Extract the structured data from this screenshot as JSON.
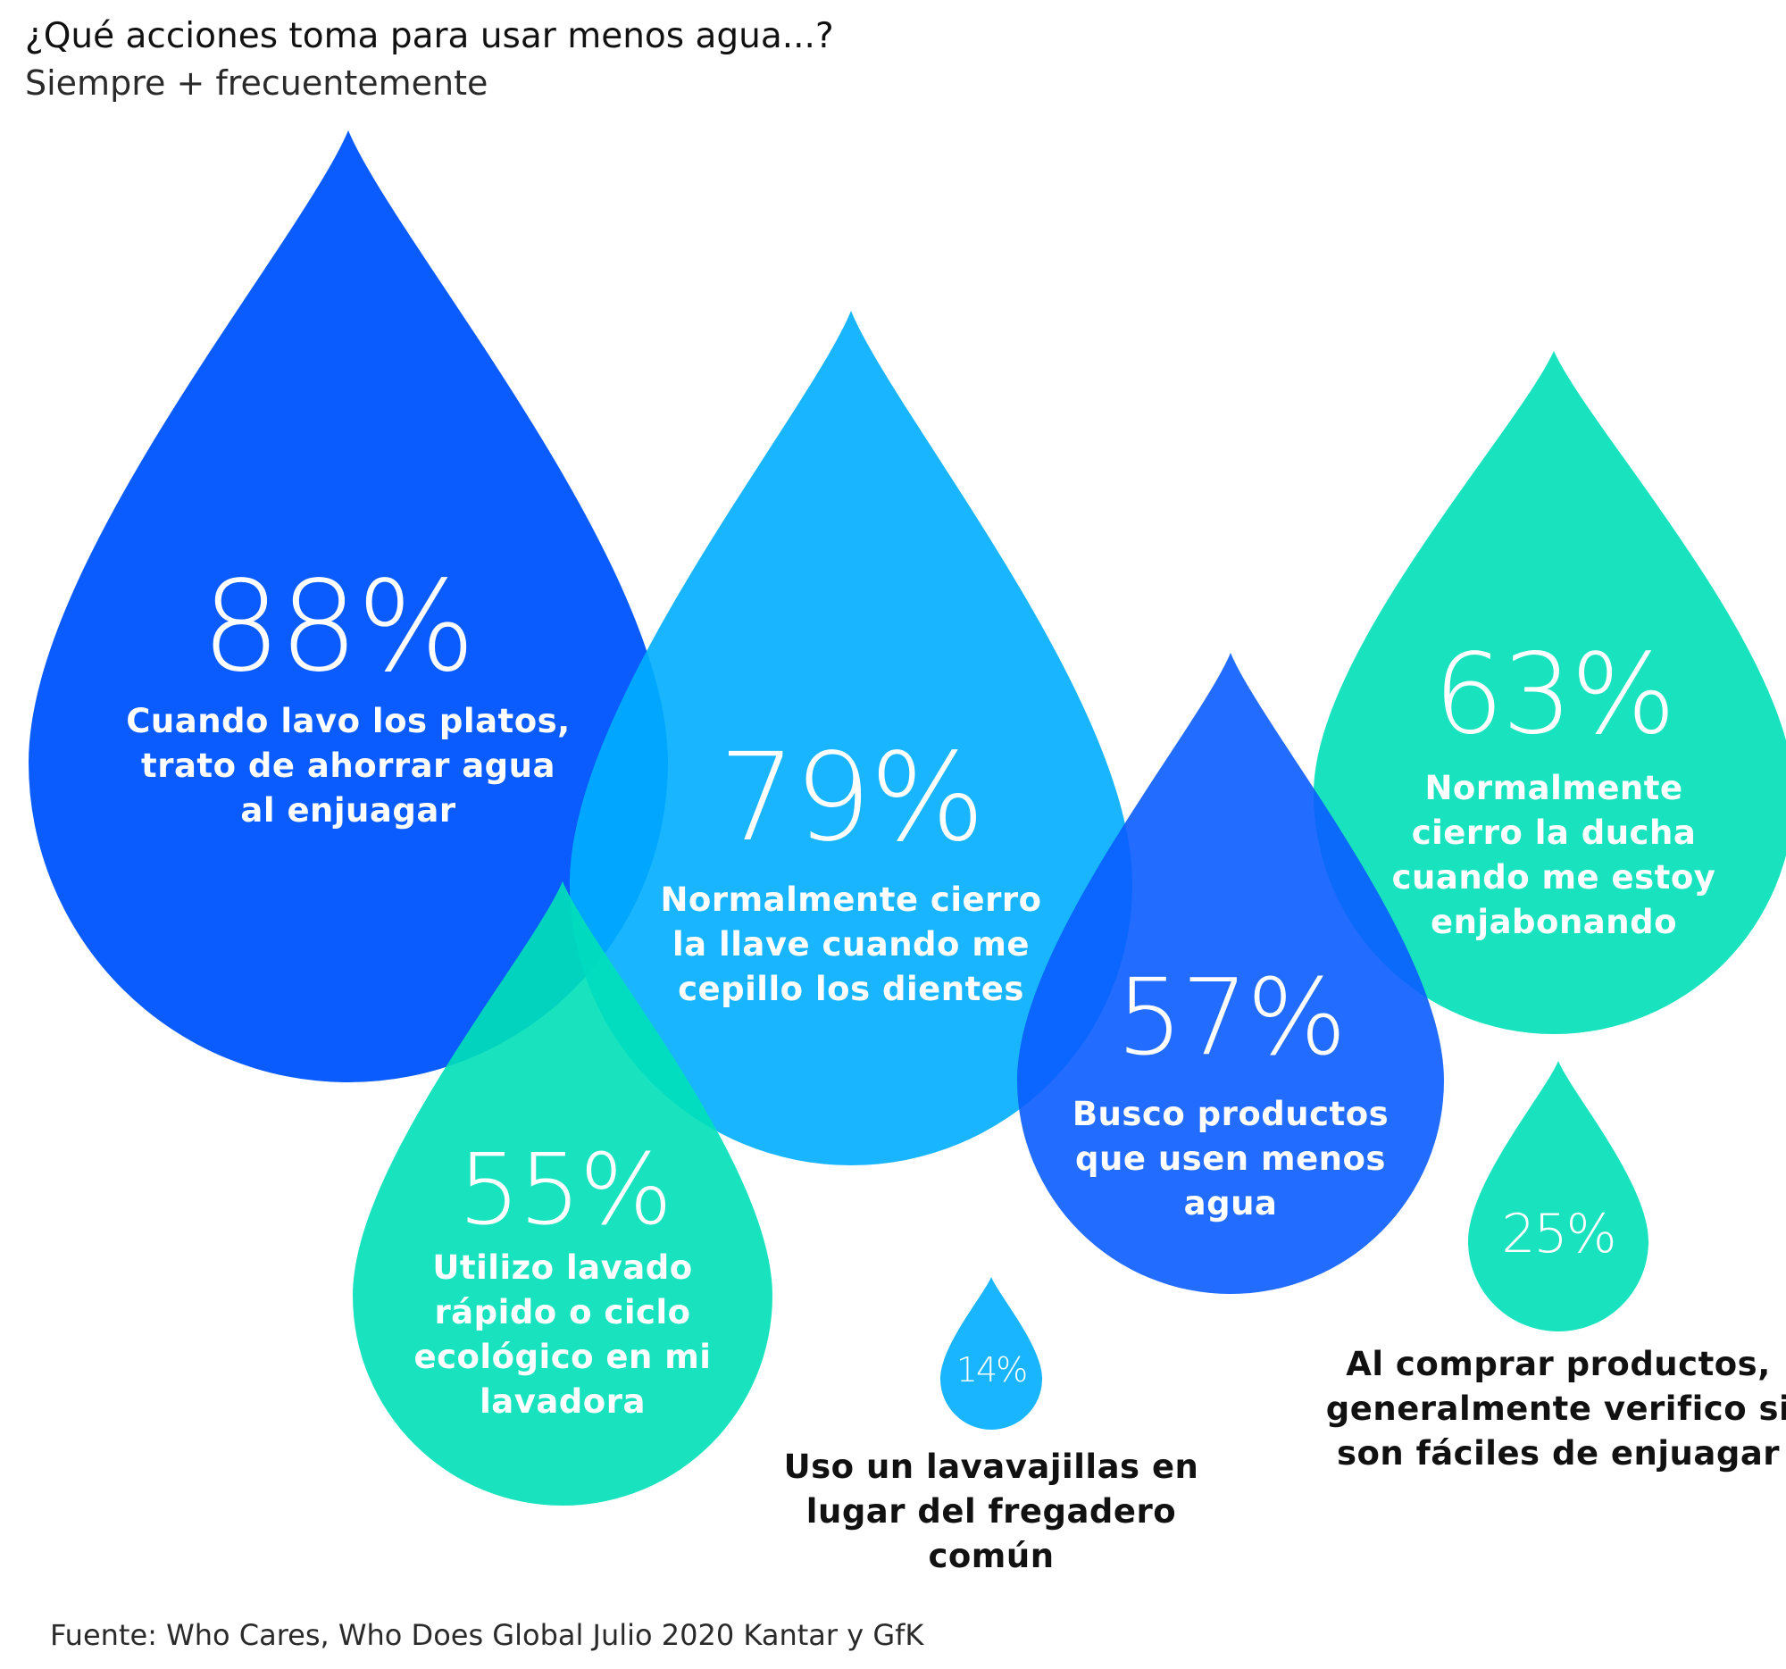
{
  "chart_data": {
    "type": "bar",
    "title": "¿Qué acciones toma para usar menos agua...?",
    "subtitle": "Siempre + frecuentemente",
    "source": "Fuente: Who Cares, Who Does Global Julio 2020 Kantar y GfK",
    "unit": "%",
    "colors": {
      "royal_blue": "#0A5CFF",
      "sky_blue": "#00AEFF",
      "turquoise": "#00E0B8"
    },
    "items": [
      {
        "value": 88,
        "label": "%",
        "text": [
          "Cuando lavo los platos,",
          "trato de ahorrar agua",
          "al enjuagar"
        ],
        "color": "#0A5CFF"
      },
      {
        "value": 79,
        "label": "%",
        "text": [
          "Normalmente cierro",
          "la llave cuando me",
          "cepillo los dientes"
        ],
        "color": "#00AEFF"
      },
      {
        "value": 63,
        "label": "%",
        "text": [
          "Normalmente",
          "cierro la ducha",
          "cuando me estoy",
          "enjabonando"
        ],
        "color": "#00E0B8"
      },
      {
        "value": 57,
        "label": "%",
        "text": [
          "Busco productos",
          "que usen menos",
          "agua"
        ],
        "color": "#0A5CFF"
      },
      {
        "value": 55,
        "label": "%",
        "text": [
          "Utilizo lavado",
          "rápido o ciclo",
          "ecológico en mi",
          "lavadora"
        ],
        "color": "#00E0B8"
      },
      {
        "value": 25,
        "label": "%",
        "text": [
          "Al comprar productos,",
          "generalmente verifico si",
          "son fáciles de enjuagar"
        ],
        "color": "#00E0B8"
      },
      {
        "value": 14,
        "label": "%",
        "text": [
          "Uso un lavavajillas en",
          "lugar del fregadero",
          "común"
        ],
        "color": "#00AEFF"
      }
    ]
  }
}
